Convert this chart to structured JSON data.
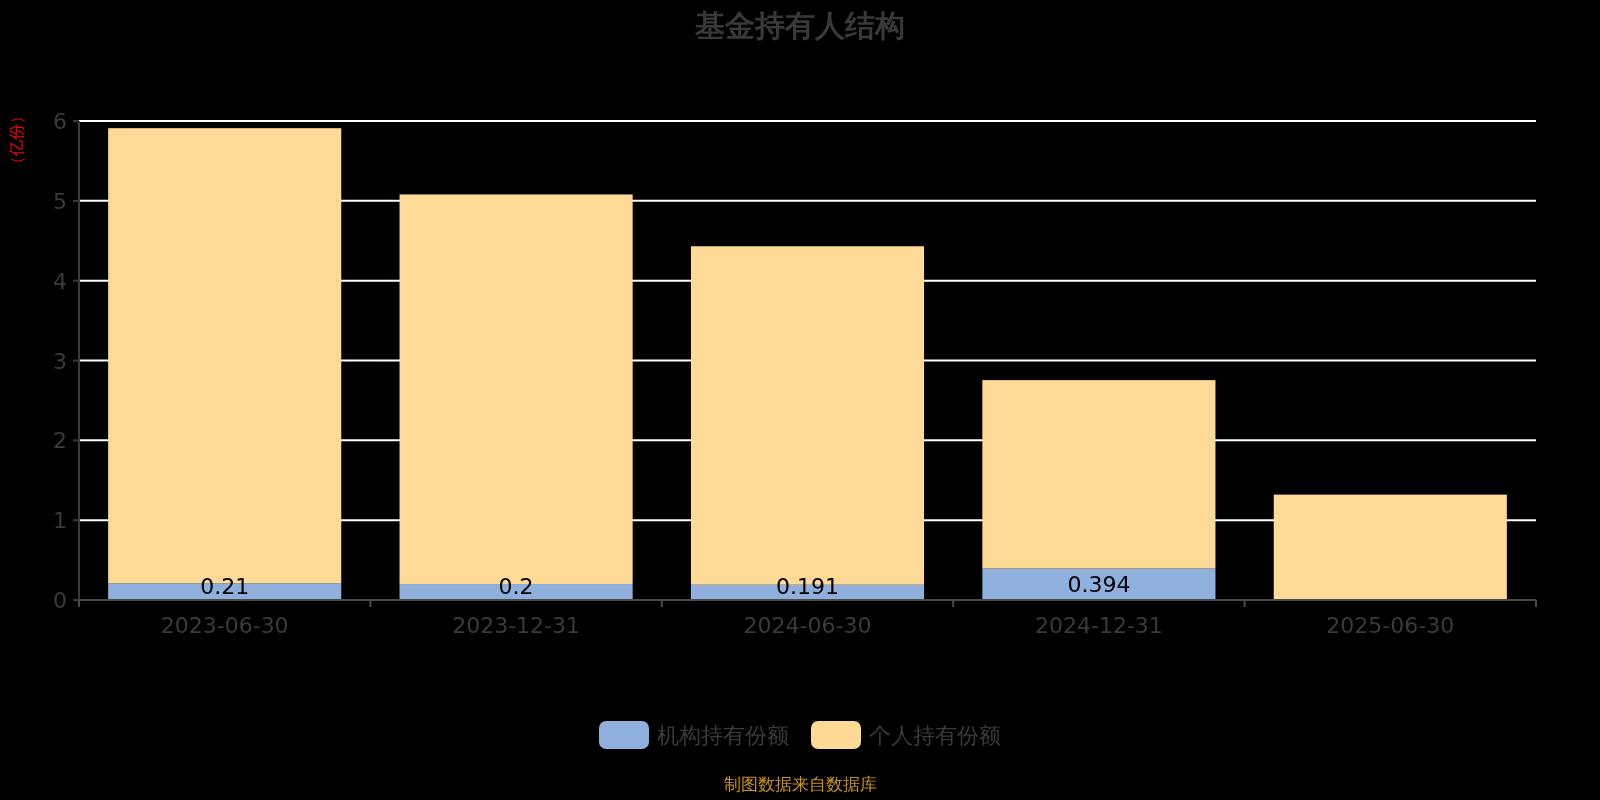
{
  "chart_data": {
    "type": "bar",
    "title": "基金持有人结构",
    "ylabel": "（亿份）",
    "categories": [
      "2023-06-30",
      "2023-12-31",
      "2024-06-30",
      "2024-12-31",
      "2025-06-30"
    ],
    "stacked": true,
    "series": [
      {
        "name": "机构持有份额",
        "color": "#8fb0dd",
        "values": [
          0.21,
          0.2,
          0.191,
          0.394,
          null
        ],
        "value_labels": [
          "0.21",
          "0.2",
          "0.191",
          "0.394",
          null
        ]
      },
      {
        "name": "个人持有份额",
        "color": "#ffd996",
        "values": [
          5.7,
          4.88,
          4.24,
          2.36,
          1.32
        ]
      }
    ],
    "ylim": [
      0,
      6
    ],
    "yticks": [
      0,
      1,
      2,
      3,
      4,
      5,
      6
    ],
    "grid": "y",
    "legend": "bottom",
    "annotations": [
      "制图数据来自数据库"
    ]
  }
}
